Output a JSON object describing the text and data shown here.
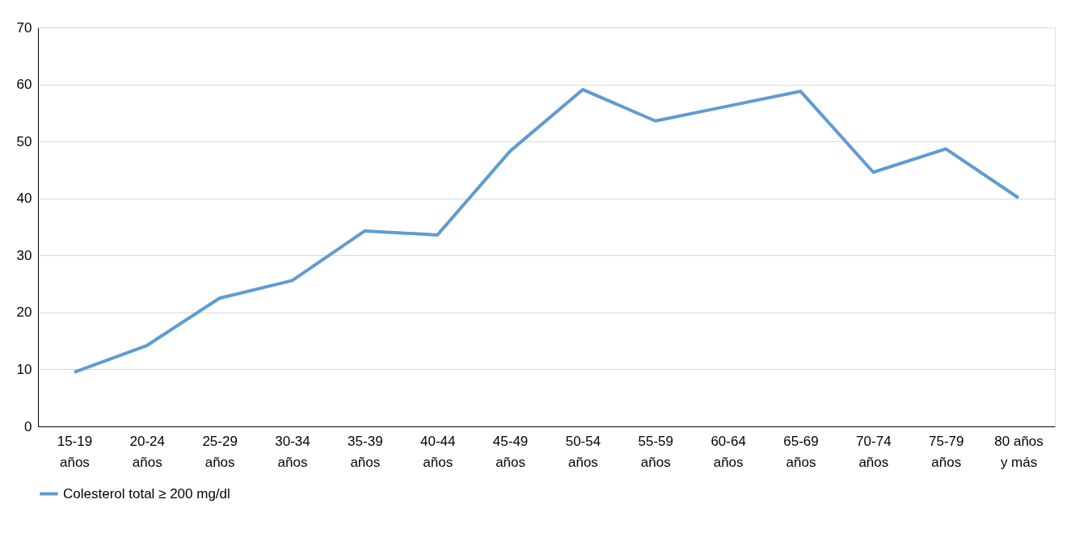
{
  "chart_data": {
    "type": "line",
    "categories": [
      "15-19\naños",
      "20-24\naños",
      "25-29\naños",
      "30-34\naños",
      "35-39\naños",
      "40-44\naños",
      "45-49\naños",
      "50-54\naños",
      "55-59\naños",
      "60-64\naños",
      "65-69\naños",
      "70-74\naños",
      "75-79\naños",
      "80 años\ny más"
    ],
    "series": [
      {
        "name": "Colesterol total ≥ 200 mg/dl",
        "color": "#5f9bd3",
        "values": [
          9.5,
          14.2,
          22.5,
          25.6,
          34.3,
          33.6,
          48.3,
          59.1,
          53.6,
          56.2,
          58.8,
          44.6,
          48.7,
          40.1
        ]
      }
    ],
    "ylim": [
      0,
      70
    ],
    "yticks": [
      0,
      10,
      20,
      30,
      40,
      50,
      60,
      70
    ],
    "grid": "y",
    "legend": "bottom",
    "marker": "none",
    "line_style": "solid"
  }
}
